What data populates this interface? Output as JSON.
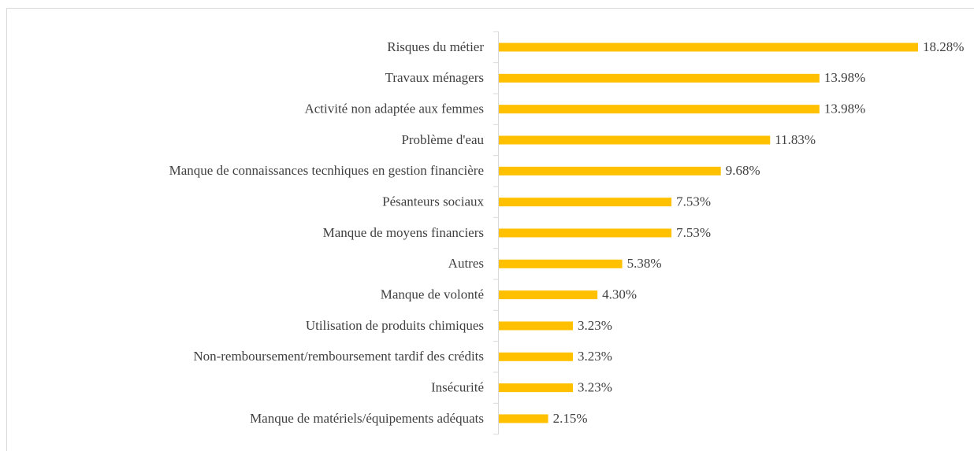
{
  "chart_data": {
    "type": "bar",
    "orientation": "horizontal",
    "color": "#ffc000",
    "categories": [
      "Risques du métier",
      "Travaux ménagers",
      "Activité non adaptée aux femmes",
      "Problème d'eau",
      "Manque de connaissances tecnhiques en gestion financière",
      "Pésanteurs sociaux",
      "Manque de moyens financiers",
      "Autres",
      "Manque de volonté",
      "Utilisation de produits chimiques",
      "Non-remboursement/remboursement tardif des crédits",
      "Insécurité",
      "Manque de matériels/équipements adéquats"
    ],
    "values": [
      18.28,
      13.98,
      13.98,
      11.83,
      9.68,
      7.53,
      7.53,
      5.38,
      4.3,
      3.23,
      3.23,
      3.23,
      2.15
    ],
    "value_labels": [
      "18.28%",
      "13.98%",
      "13.98%",
      "11.83%",
      "9.68%",
      "7.53%",
      "7.53%",
      "5.38%",
      "4.30%",
      "3.23%",
      "3.23%",
      "3.23%",
      "2.15%"
    ]
  }
}
